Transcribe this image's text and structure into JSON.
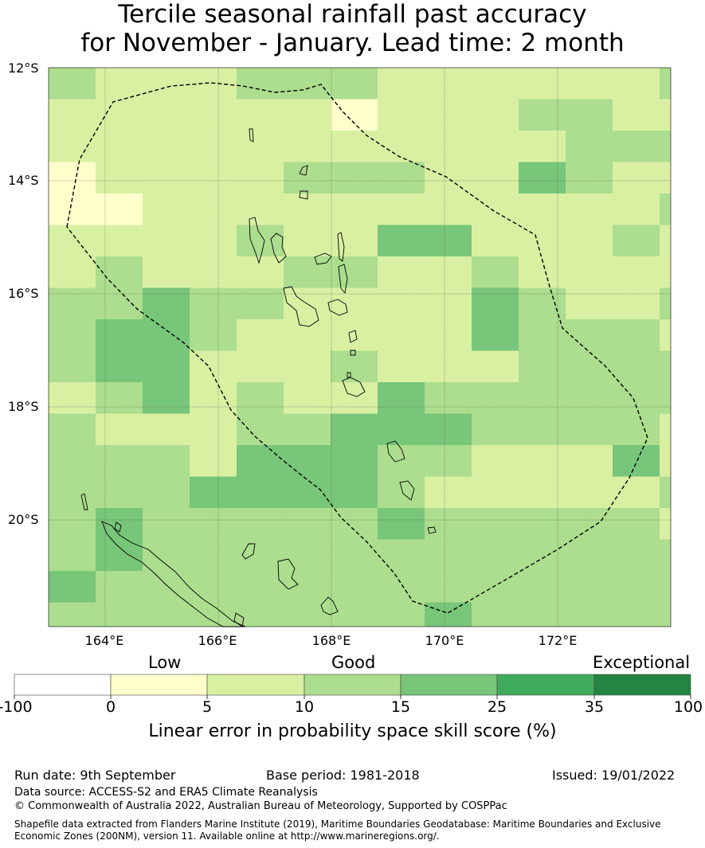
{
  "title": {
    "line1": "Tercile seasonal rainfall past accuracy",
    "line2": "for November - January. Lead time: 2 month"
  },
  "map": {
    "lat_labels": [
      "12°S",
      "14°S",
      "16°S",
      "18°S",
      "20°S"
    ],
    "lon_labels": [
      "164°E",
      "166°E",
      "168°E",
      "170°E",
      "172°E"
    ],
    "boundary_style": "dashed",
    "grid": true
  },
  "legend": {
    "categories": [
      "Low",
      "Good",
      "Exceptional"
    ],
    "ticks": [
      "-100",
      "0",
      "5",
      "10",
      "15",
      "25",
      "35",
      "100"
    ],
    "colors": [
      "#ffffff",
      "#ffffcc",
      "#d9f0a3",
      "#addd8e",
      "#78c679",
      "#41ab5d",
      "#238443"
    ],
    "label": "Linear error in probability space skill score (%)"
  },
  "footer": {
    "run_date": "Run date: 9th September",
    "base_period": "Base period: 1981-2018",
    "issued": "Issued: 19/01/2022",
    "data_source": "Data source: ACCESS-S2 and ERA5 Climate Reanalysis",
    "copyright": "© Commonwealth of Australia 2022, Australian Bureau of Meteorology, Supported by COSPPac",
    "shapefile": "Shapefile data extracted from Flanders Marine Institute (2019), Maritime Boundaries Geodatabase: Maritime Boundaries and Exclusive Economic Zones (200NM), version 11. Available online at http://www.marineregions.org/."
  }
}
